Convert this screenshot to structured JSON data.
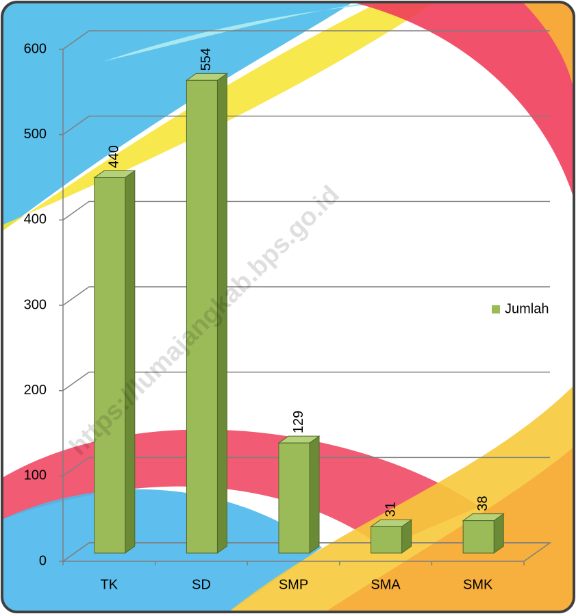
{
  "chart_data": {
    "type": "bar",
    "categories": [
      "TK",
      "SD",
      "SMP",
      "SMA",
      "SMK"
    ],
    "series": [
      {
        "name": "Jumlah",
        "color": "#9bbb59",
        "values": [
          440,
          554,
          129,
          31,
          38
        ]
      }
    ],
    "ylim": [
      0,
      600
    ],
    "yticks": [
      0,
      100,
      200,
      300,
      400,
      500,
      600
    ],
    "grid": true,
    "legend": "right",
    "watermark": "https://lumajangkab.bps.go.id"
  }
}
